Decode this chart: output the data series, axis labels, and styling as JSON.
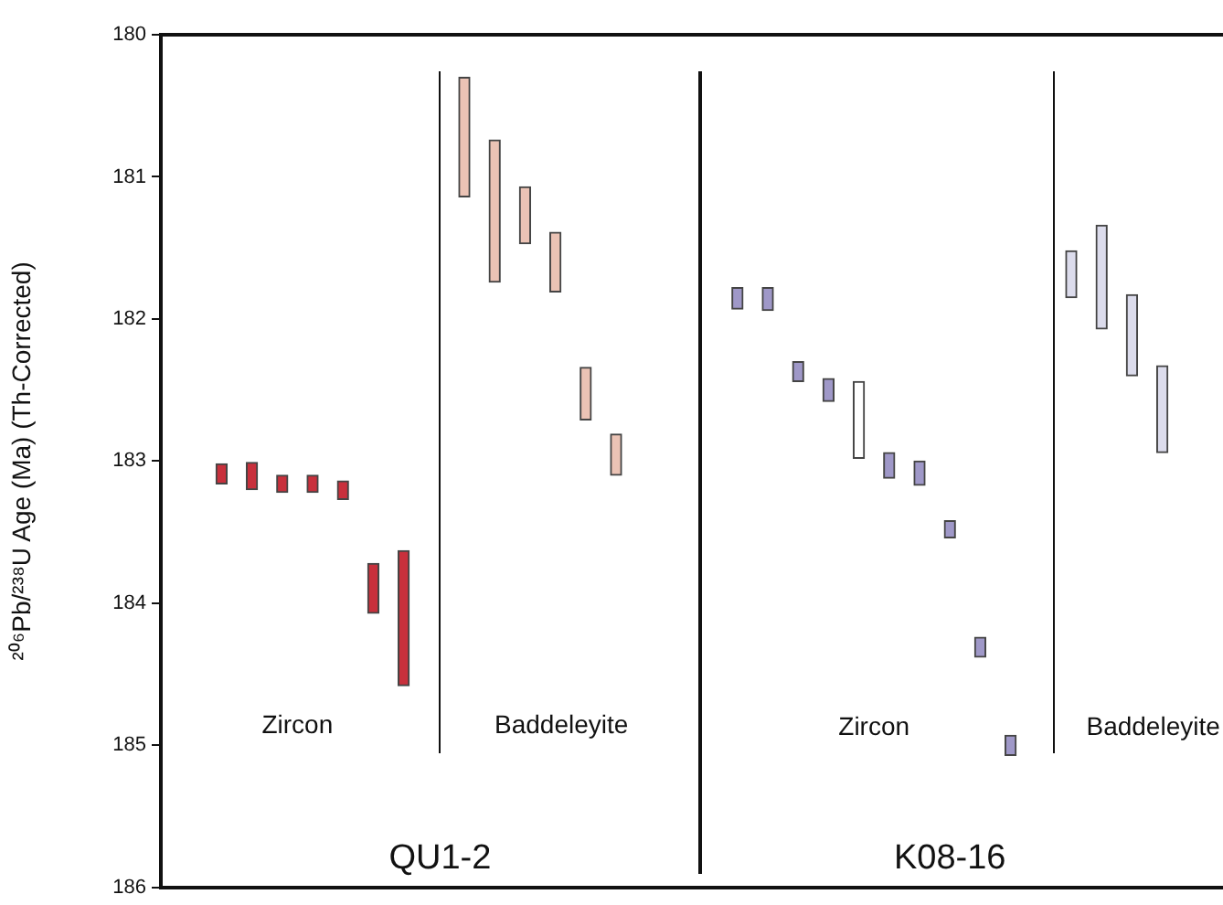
{
  "chart_data": {
    "type": "bar",
    "ylabel": "²⁰⁶Pb/²³⁸U Age (Ma) (Th-Corrected)",
    "categories": [
      null,
      null,
      null,
      null,
      null,
      null,
      null,
      null,
      null,
      null,
      null,
      null,
      null,
      null,
      null,
      null,
      null,
      null,
      null,
      null,
      null,
      null,
      null,
      null,
      null,
      null,
      null,
      null,
      null,
      null,
      null,
      null,
      null,
      null,
      null,
      null
    ],
    "base": [
      null,
      null,
      183.02,
      183.01,
      183.1,
      183.1,
      183.14,
      183.72,
      183.63,
      null,
      180.3,
      180.74,
      181.07,
      181.39,
      182.34,
      182.81,
      null,
      null,
      null,
      181.78,
      181.78,
      182.3,
      182.42,
      182.44,
      182.94,
      183.0,
      183.42,
      184.24,
      184.93,
      null,
      181.52,
      181.34,
      181.83,
      182.33,
      null,
      null
    ],
    "values": [
      null,
      null,
      0.14,
      0.19,
      0.12,
      0.12,
      0.13,
      0.35,
      0.95,
      null,
      0.84,
      1.0,
      0.4,
      0.42,
      0.37,
      0.29,
      null,
      null,
      null,
      0.15,
      0.16,
      0.14,
      0.16,
      0.54,
      0.18,
      0.17,
      0.12,
      0.14,
      0.14,
      null,
      0.33,
      0.73,
      0.57,
      0.61,
      null,
      null
    ],
    "colors": [
      "#c8303c",
      "#c8303c",
      "#c8303c",
      "#c8303c",
      "#c8303c",
      "#c8303c",
      "#c8303c",
      "#c8303c",
      "#c8303c",
      "#ebc3b5",
      "#ebc3b5",
      "#ebc3b5",
      "#ebc3b5",
      "#ebc3b5",
      "#ebc3b5",
      "#ebc3b5",
      "#9f98c8",
      "#9f98c8",
      "#9f98c8",
      "#9f98c8",
      "#9f98c8",
      "#9f98c8",
      "#9f98c8",
      "#ffffff",
      "#9f98c8",
      "#9f98c8",
      "#9f98c8",
      "#9f98c8",
      "#9f98c8",
      "#dcdcec",
      "#dcdcec",
      "#dcdcec",
      "#dcdcec",
      "#dcdcec",
      "#dcdcec",
      "#dcdcec"
    ],
    "ylim": [
      186,
      180
    ],
    "yticks": [
      180,
      181,
      182,
      183,
      184,
      185,
      186
    ],
    "annotations": [
      "Zircon",
      "Baddeleyite",
      "QU1-2",
      "Zircon",
      "Baddeleyite",
      "K08-16"
    ],
    "tick_labels": "y",
    "grid": false,
    "legend": false
  }
}
